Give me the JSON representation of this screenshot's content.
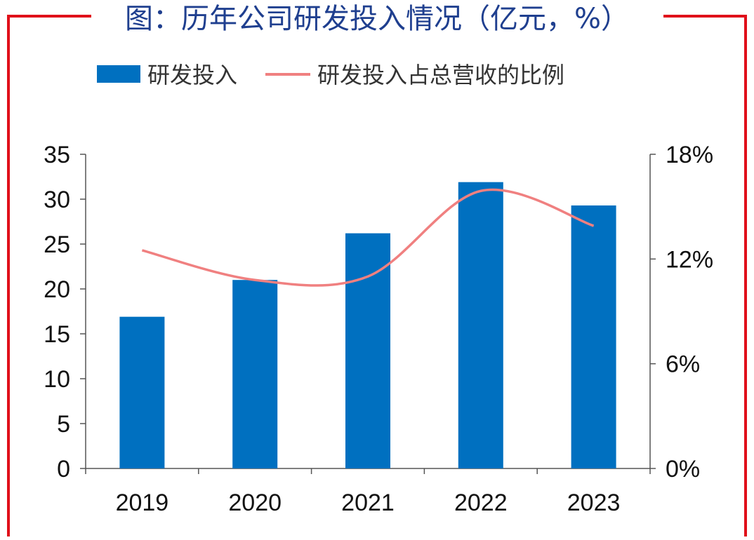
{
  "chart_data": {
    "type": "bar",
    "title": "图：历年公司研发投入情况（亿元，%）",
    "categories": [
      "2019",
      "2020",
      "2021",
      "2022",
      "2023"
    ],
    "series": [
      {
        "name": "研发投入",
        "type": "bar",
        "axis": "left",
        "color": "#0070c0",
        "values": [
          16.9,
          21.0,
          26.2,
          31.9,
          29.3
        ]
      },
      {
        "name": "研发投入占总营收的比例",
        "type": "line",
        "axis": "right",
        "color": "#f08080",
        "values": [
          12.5,
          10.8,
          11.0,
          15.9,
          13.9
        ]
      }
    ],
    "y_left": {
      "ylim": [
        0,
        35
      ],
      "ticks": [
        "0",
        "5",
        "10",
        "15",
        "20",
        "25",
        "30",
        "35"
      ]
    },
    "y_right": {
      "ylim": [
        0,
        18
      ],
      "ticks": [
        "0%",
        "6%",
        "12%",
        "18%"
      ],
      "tick_values": [
        0,
        6,
        12,
        18
      ]
    },
    "legend_position": "top",
    "grid": false,
    "frame_color": "#e0101a"
  }
}
